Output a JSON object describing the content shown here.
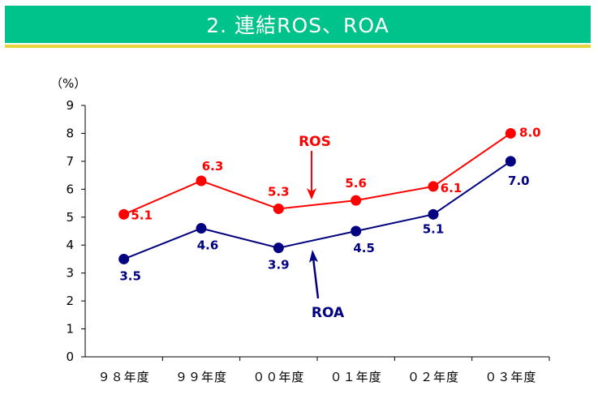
{
  "page": {
    "title": "2. 連結ROS、ROA",
    "title_bg": "#00c28b",
    "underline_color": "#e5d23c"
  },
  "chart_data": {
    "type": "line",
    "unit_label": "（%）",
    "categories": [
      "９８年度",
      "９９年度",
      "００年度",
      "０１年度",
      "０２年度",
      "０３年度"
    ],
    "ylim": [
      0,
      9
    ],
    "yticks": [
      "0",
      "1",
      "2",
      "3",
      "4",
      "5",
      "6",
      "7",
      "8",
      "9"
    ],
    "grid": false,
    "series": [
      {
        "name": "ROS",
        "color": "#ff0000",
        "values": [
          5.1,
          6.3,
          5.3,
          5.6,
          6.1,
          8.0
        ],
        "labels": [
          "5.1",
          "6.3",
          "5.3",
          "5.6",
          "6.1",
          "8.0"
        ]
      },
      {
        "name": "ROA",
        "color": "#000080",
        "values": [
          3.5,
          4.6,
          3.9,
          4.5,
          5.1,
          7.0
        ],
        "labels": [
          "3.5",
          "4.6",
          "3.9",
          "4.5",
          "5.1",
          "7.0"
        ]
      }
    ]
  }
}
